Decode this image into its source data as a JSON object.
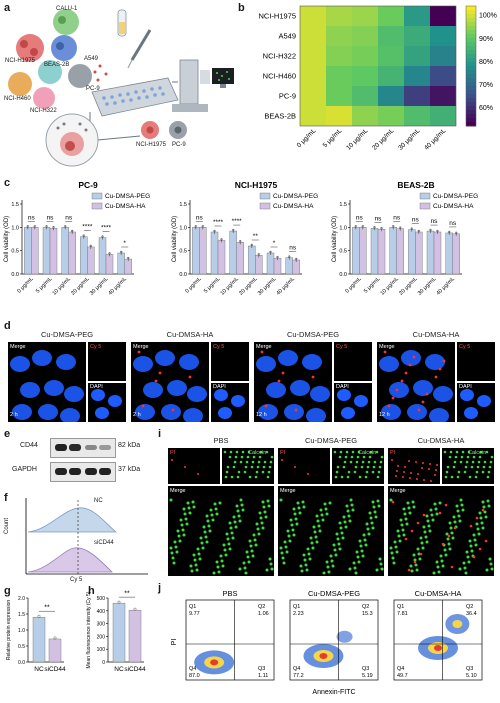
{
  "panel_labels": {
    "a": "a",
    "b": "b",
    "c": "c",
    "d": "d",
    "e": "e",
    "f": "f",
    "g": "g",
    "h": "h",
    "i": "i",
    "j": "j"
  },
  "panel_a": {
    "cells": [
      "NCI-H1975",
      "CALU-1",
      "A549",
      "BEAS-2B",
      "PC-9",
      "NCI-H460",
      "NCI-H322"
    ],
    "result_cells": [
      "NCI-H1975",
      "PC-9"
    ]
  },
  "chart_data": [
    {
      "type": "heatmap",
      "panel": "b",
      "rows": [
        "NCI-H1975",
        "A549",
        "NCI-H322",
        "NCI-H460",
        "PC-9",
        "BEAS-2B"
      ],
      "columns": [
        "0 μg/mL",
        "5 μg/mL",
        "10 μg/mL",
        "20 μg/mL",
        "30 μg/mL",
        "40 μg/mL"
      ],
      "values": [
        [
          100,
          97,
          96,
          92,
          80,
          52
        ],
        [
          100,
          95,
          94,
          88,
          84,
          78
        ],
        [
          100,
          94,
          93,
          89,
          82,
          75
        ],
        [
          100,
          92,
          91,
          86,
          76,
          64
        ],
        [
          100,
          92,
          88,
          76,
          62,
          55
        ],
        [
          100,
          101,
          95,
          93,
          88,
          85
        ]
      ],
      "colorbar_ticks": [
        "100%",
        "90%",
        "80%",
        "70%",
        "60%"
      ],
      "colorbar_range": [
        52,
        104
      ],
      "colormap": "viridis"
    },
    {
      "type": "bar",
      "panel": "c",
      "title": "PC-9",
      "ylabel": "Cell viability (OD)",
      "categories": [
        "0 μg/mL",
        "5 μg/mL",
        "10 μg/mL",
        "20 μg/mL",
        "30 μg/mL",
        "40 μg/mL"
      ],
      "ylim": [
        0,
        1.5
      ],
      "yticks": [
        "0.0",
        "0.5",
        "1.0",
        "1.5"
      ],
      "series": [
        {
          "name": "Cu-DMSA-PEG",
          "color": "#b7cde8",
          "values": [
            1.0,
            1.0,
            1.0,
            0.8,
            0.78,
            0.45
          ]
        },
        {
          "name": "Cu-DMSA-HA",
          "color": "#d3c1e3",
          "values": [
            1.0,
            0.98,
            0.9,
            0.58,
            0.42,
            0.32
          ]
        }
      ],
      "significance": [
        "ns",
        "ns",
        "ns",
        "****",
        "****",
        "*"
      ]
    },
    {
      "type": "bar",
      "panel": "c",
      "title": "NCI-H1975",
      "ylabel": "Cell viability (OD)",
      "categories": [
        "0 μg/mL",
        "5 μg/mL",
        "10 μg/mL",
        "20 μg/mL",
        "30 μg/mL",
        "40 μg/mL"
      ],
      "ylim": [
        0,
        1.5
      ],
      "yticks": [
        "0.0",
        "0.5",
        "1.0",
        "1.5"
      ],
      "series": [
        {
          "name": "Cu-DMSA-PEG",
          "color": "#b7cde8",
          "values": [
            1.0,
            0.9,
            0.92,
            0.6,
            0.45,
            0.35
          ]
        },
        {
          "name": "Cu-DMSA-HA",
          "color": "#d3c1e3",
          "values": [
            1.0,
            0.72,
            0.68,
            0.4,
            0.34,
            0.3
          ]
        }
      ],
      "significance": [
        "ns",
        "****",
        "****",
        "**",
        "*",
        "ns"
      ]
    },
    {
      "type": "bar",
      "panel": "c",
      "title": "BEAS-2B",
      "ylabel": "Cell viability (OD)",
      "categories": [
        "0 μg/mL",
        "5 μg/mL",
        "10 μg/mL",
        "20 μg/mL",
        "30 μg/mL",
        "40 μg/mL"
      ],
      "ylim": [
        0,
        1.5
      ],
      "yticks": [
        "0.0",
        "0.5",
        "1.0",
        "1.5"
      ],
      "series": [
        {
          "name": "Cu-DMSA-PEG",
          "color": "#b7cde8",
          "values": [
            1.0,
            0.98,
            1.0,
            0.95,
            0.92,
            0.88
          ]
        },
        {
          "name": "Cu-DMSA-HA",
          "color": "#d3c1e3",
          "values": [
            1.0,
            0.96,
            0.97,
            0.9,
            0.9,
            0.86
          ]
        }
      ],
      "significance": [
        "ns",
        "ns",
        "ns",
        "ns",
        "ns",
        "ns"
      ]
    },
    {
      "type": "bar",
      "panel": "g",
      "ylabel": "Relative protein expression",
      "categories": [
        "NC",
        "siCD44"
      ],
      "ylim": [
        0,
        2.0
      ],
      "yticks": [
        "0.0",
        "0.5",
        "1.0",
        "1.5",
        "2.0"
      ],
      "values": [
        1.4,
        0.72
      ],
      "colors": [
        "#b7cde8",
        "#d3c1e3"
      ],
      "significance": "**"
    },
    {
      "type": "bar",
      "panel": "h",
      "ylabel": "Mean fluorescence intensity (Cy 5)",
      "categories": [
        "NC",
        "siCD44"
      ],
      "ylim": [
        0,
        500
      ],
      "yticks": [
        "0",
        "100",
        "200",
        "300",
        "400",
        "500"
      ],
      "values": [
        460,
        405
      ],
      "colors": [
        "#b7cde8",
        "#d3c1e3"
      ],
      "significance": "**"
    }
  ],
  "panel_d": {
    "groups": [
      {
        "title": "Cu-DMSA-PEG",
        "time": "2 h"
      },
      {
        "title": "Cu-DMSA-HA",
        "time": "2 h"
      },
      {
        "title": "Cu-DMSA-PEG",
        "time": "12 h"
      },
      {
        "title": "Cu-DMSA-HA",
        "time": "12 h"
      }
    ],
    "merge_label": "Merge",
    "cy5_label": "Cy 5",
    "dapi_label": "DAPI"
  },
  "panel_e": {
    "bands": [
      {
        "name": "CD44",
        "size": "82 kDa"
      },
      {
        "name": "GAPDH",
        "size": "37 kDa"
      }
    ]
  },
  "panel_f": {
    "traces": [
      "NC",
      "siCD44"
    ],
    "xlabel": "Cy 5",
    "ylabel": "Count"
  },
  "panel_i": {
    "groups": [
      "PBS",
      "Cu-DMSA-PEG",
      "Cu-DMSA-HA"
    ],
    "pi_label": "PI",
    "calcein_label": "Calcein",
    "merge_label": "Merge"
  },
  "panel_j": {
    "xlabel": "Annexin-FITC",
    "ylabel": "PI",
    "plots": [
      {
        "title": "PBS",
        "q1": "Q1",
        "q1v": "9.77",
        "q2": "Q2",
        "q2v": "1.06",
        "q3": "Q3",
        "q3v": "1.11",
        "q4": "Q4",
        "q4v": "87.0"
      },
      {
        "title": "Cu-DMSA-PEG",
        "q1": "Q1",
        "q1v": "2.23",
        "q2": "Q2",
        "q2v": "15.3",
        "q3": "Q3",
        "q3v": "5.19",
        "q4": "Q4",
        "q4v": "77.2"
      },
      {
        "title": "Cu-DMSA-HA",
        "q1": "Q1",
        "q1v": "7.81",
        "q2": "Q2",
        "q2v": "36.4",
        "q3": "Q3",
        "q3v": "5.10",
        "q4": "Q4",
        "q4v": "49.7"
      }
    ],
    "axis_ticks": [
      "10⁰",
      "10¹",
      "10²",
      "10³",
      "10⁴",
      "10⁵"
    ]
  },
  "colors": {
    "peg": "#b7cde8",
    "ha": "#d3c1e3",
    "nuclei": "#1e5cff",
    "cy5": "#ff3030",
    "calcein": "#3ddc3d"
  }
}
